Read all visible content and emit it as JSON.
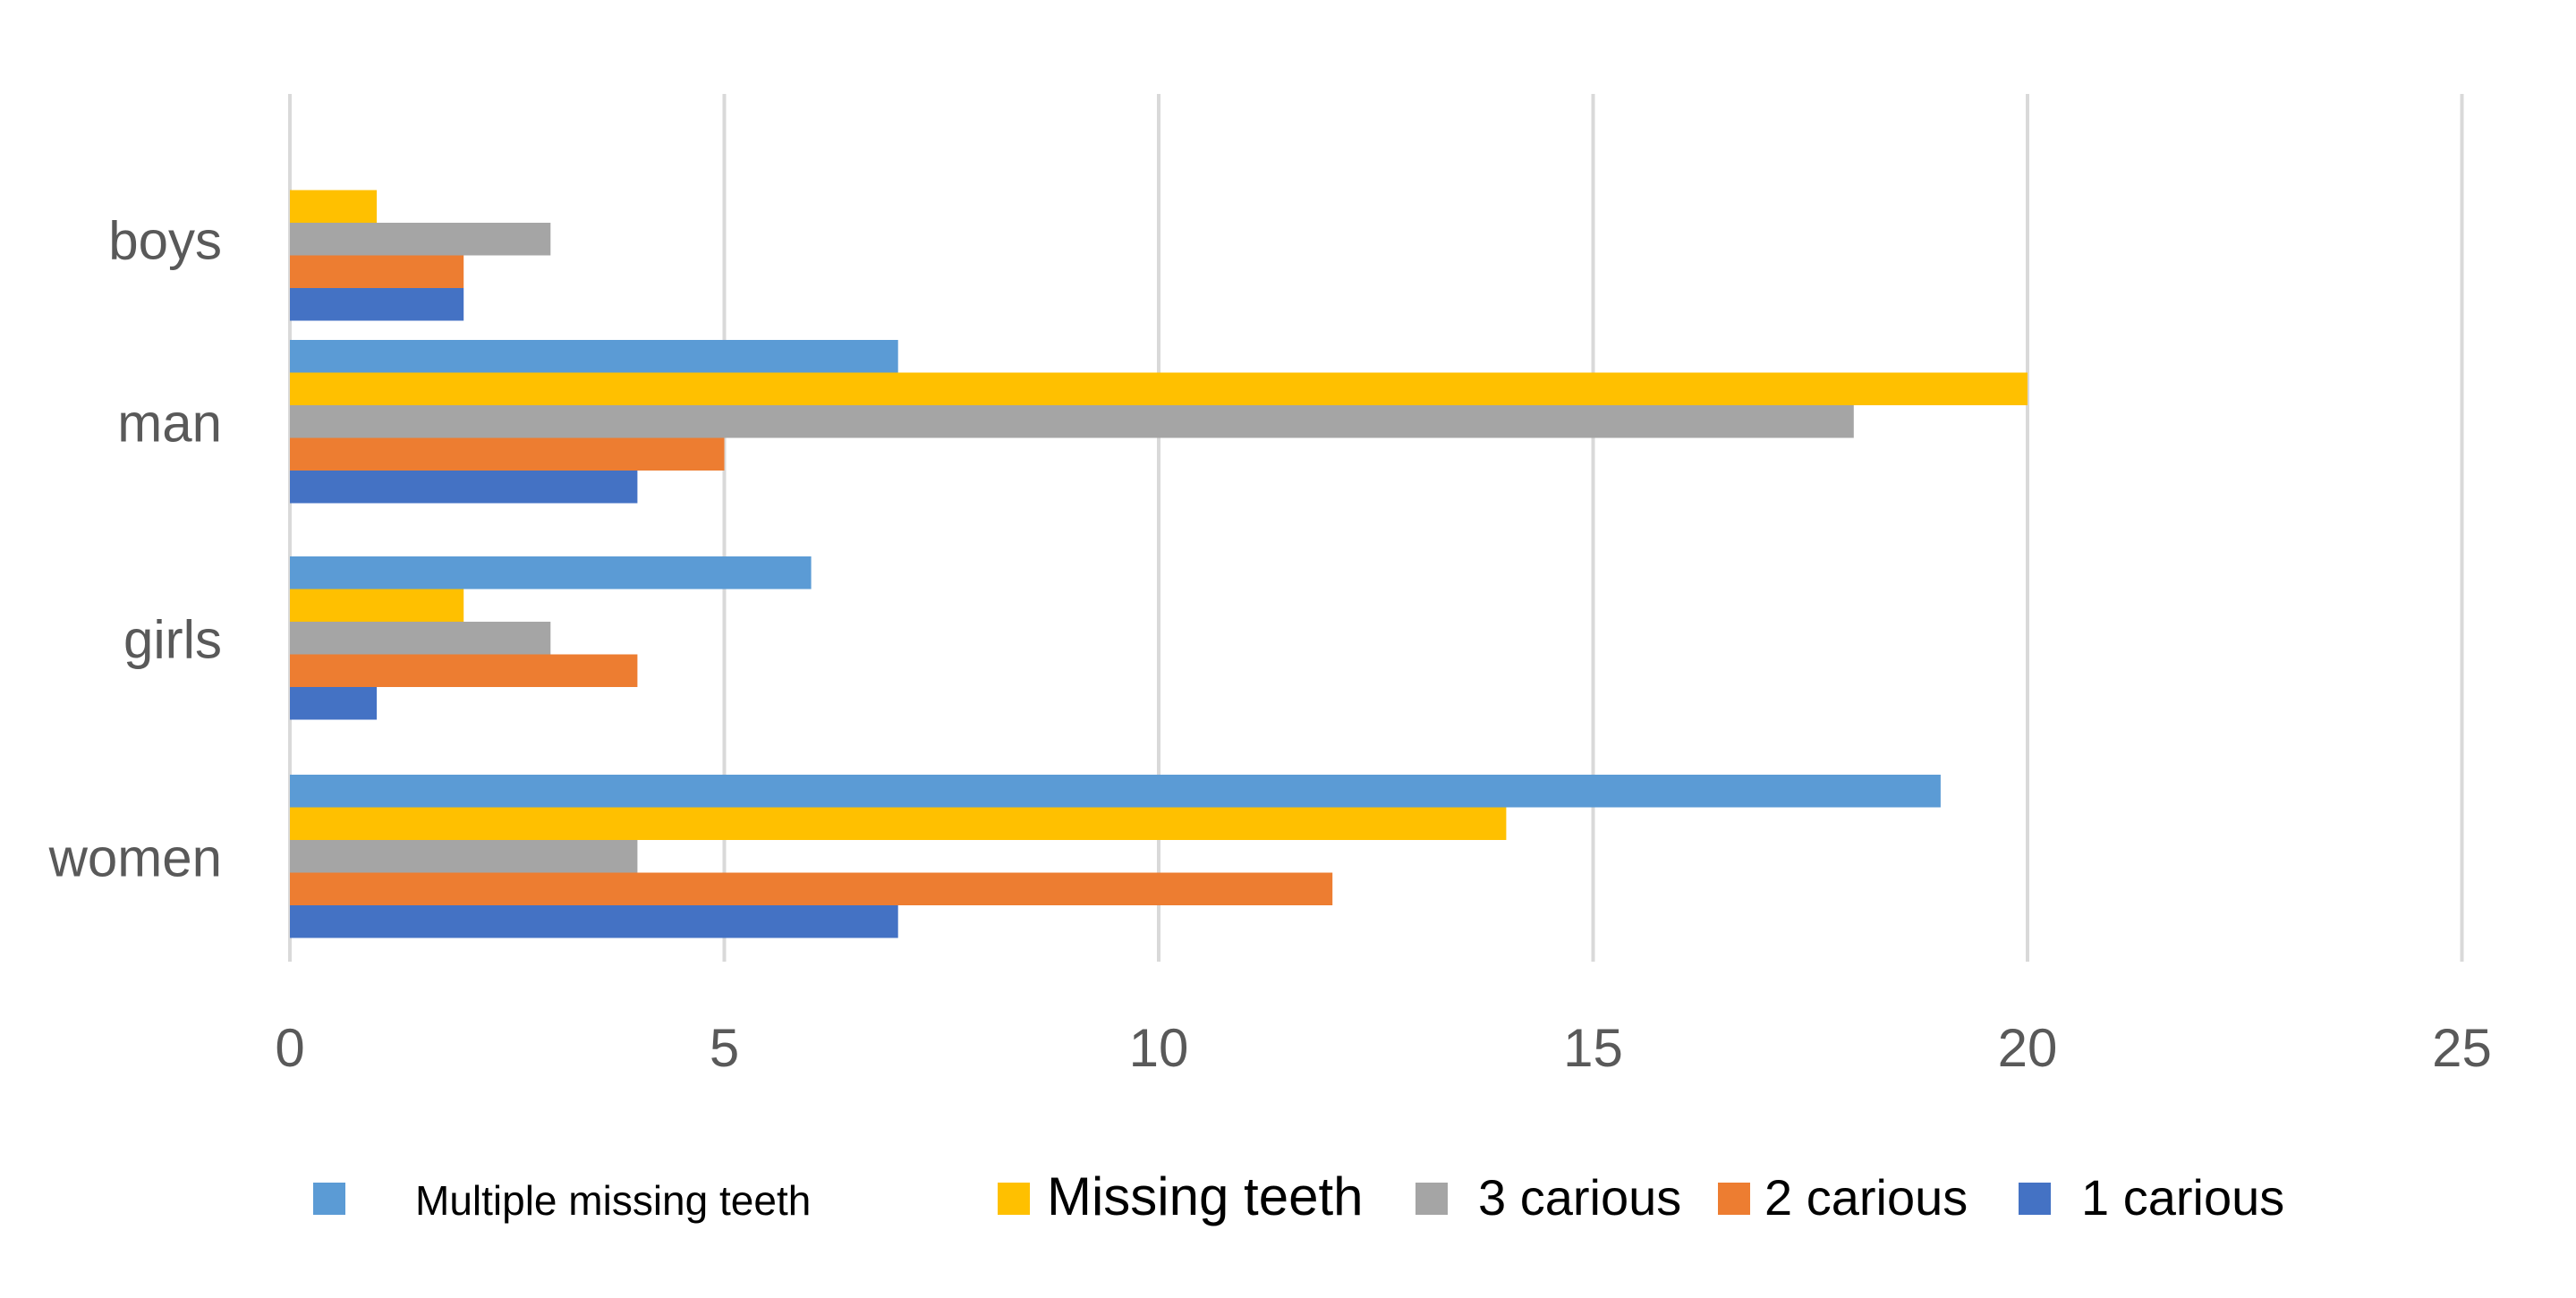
{
  "chart_data": {
    "type": "bar",
    "orientation": "horizontal",
    "title": "",
    "xlabel": "",
    "ylabel": "",
    "categories": [
      "boys",
      "man",
      "girls",
      "women"
    ],
    "x_ticks": [
      0,
      5,
      10,
      15,
      20,
      25
    ],
    "xlim": [
      0,
      25
    ],
    "grid": "vertical",
    "legend_position": "bottom",
    "series": [
      {
        "name": "Multiple missing teeth",
        "color": "#5B9BD5",
        "values": [
          0,
          7,
          6,
          19
        ]
      },
      {
        "name": "Missing teeth",
        "color": "#FFC000",
        "values": [
          1,
          20,
          2,
          14
        ]
      },
      {
        "name": "3 carious",
        "color": "#A5A5A5",
        "values": [
          3,
          18,
          3,
          4
        ]
      },
      {
        "name": "2 carious",
        "color": "#ED7D31",
        "values": [
          2,
          5,
          4,
          12
        ]
      },
      {
        "name": "1 carious",
        "color": "#4472C4",
        "values": [
          2,
          4,
          1,
          7
        ]
      }
    ]
  }
}
